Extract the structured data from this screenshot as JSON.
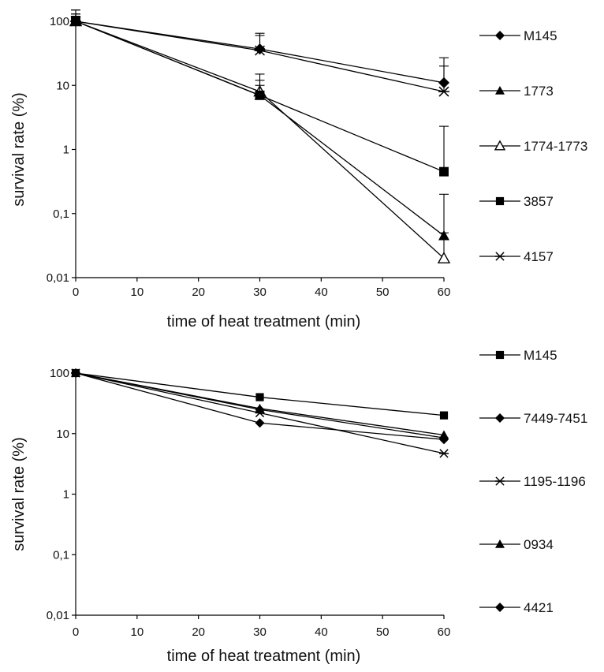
{
  "chart_data": [
    {
      "type": "line",
      "title": "",
      "xlabel": "time of heat treatment (min)",
      "ylabel": "survival rate (%)",
      "y_scale": "log",
      "xlim": [
        0,
        60
      ],
      "ylim": [
        0.01,
        100
      ],
      "x_ticks": [
        "0",
        "10",
        "20",
        "30",
        "40",
        "50",
        "60"
      ],
      "y_ticks": [
        "0,01",
        "0,1",
        "1",
        "10",
        "100"
      ],
      "x": [
        0,
        30,
        60
      ],
      "legend_placement": "right",
      "series": [
        {
          "name": "M145",
          "marker": "diamond",
          "values": [
            100,
            37,
            11
          ],
          "error_upper": [
            150,
            60,
            27
          ]
        },
        {
          "name": "1773",
          "marker": "triangle-filled",
          "values": [
            100,
            7,
            0.045
          ],
          "error_upper": [
            150,
            12,
            0.2
          ]
        },
        {
          "name": "1774-1773",
          "marker": "triangle-open",
          "values": [
            100,
            8,
            0.02
          ],
          "error_upper": [
            130,
            15,
            0.05
          ]
        },
        {
          "name": "3857",
          "marker": "square",
          "values": [
            100,
            7,
            0.45
          ],
          "error_upper": [
            120,
            10,
            2.3
          ]
        },
        {
          "name": "4157",
          "marker": "star",
          "values": [
            100,
            35,
            8
          ],
          "error_upper": [
            130,
            65,
            20
          ]
        }
      ]
    },
    {
      "type": "line",
      "title": "",
      "xlabel": "time of heat treatment (min)",
      "ylabel": "survival rate (%)",
      "y_scale": "log",
      "xlim": [
        0,
        60
      ],
      "ylim": [
        0.01,
        100
      ],
      "x_ticks": [
        "0",
        "10",
        "20",
        "30",
        "40",
        "50",
        "60"
      ],
      "y_ticks": [
        "0,01",
        "0,1",
        "1",
        "10",
        "100"
      ],
      "x": [
        0,
        30,
        60
      ],
      "legend_placement": "right",
      "series": [
        {
          "name": "M145",
          "marker": "square",
          "values": [
            100,
            40,
            20
          ]
        },
        {
          "name": "7449-7451",
          "marker": "diamond",
          "values": [
            100,
            15,
            8
          ]
        },
        {
          "name": "1195-1196",
          "marker": "star",
          "values": [
            100,
            22,
            4.7
          ]
        },
        {
          "name": "0934",
          "marker": "triangle-filled",
          "values": [
            100,
            26,
            9.5
          ]
        },
        {
          "name": "4421",
          "marker": "diamond",
          "values": [
            100,
            25,
            8.5
          ]
        }
      ]
    }
  ]
}
